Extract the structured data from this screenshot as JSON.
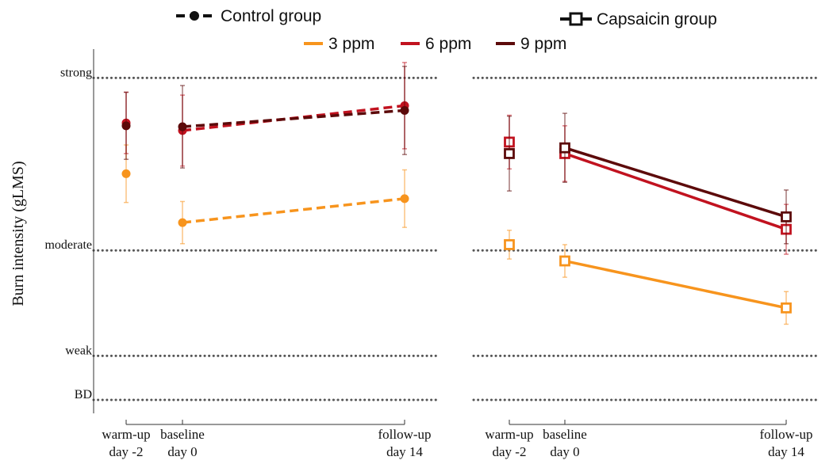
{
  "chart_data": {
    "type": "line",
    "ylabel": "Burn intensity (gLMS)",
    "reference_levels": [
      {
        "label": "strong",
        "value": 35
      },
      {
        "label": "moderate",
        "value": 17
      },
      {
        "label": "weak",
        "value": 6
      },
      {
        "label": "BD",
        "value": 1.4
      }
    ],
    "x_ticks": [
      {
        "line1": "warm-up",
        "line2": "day -2",
        "x": -2
      },
      {
        "line1": "baseline",
        "line2": "day 0",
        "x": 0
      },
      {
        "line1": "follow-up",
        "line2": "day 14",
        "x": 14
      }
    ],
    "xlim": [
      -3.1,
      15.5
    ],
    "ylim": [
      0,
      38
    ],
    "legend": {
      "groups": [
        {
          "name": "Control group",
          "marker": "circle",
          "line": "dashed"
        },
        {
          "name": "Capsaicin group",
          "marker": "square",
          "line": "solid"
        }
      ],
      "concentrations": [
        {
          "name": "3 ppm",
          "color": "#f7941d"
        },
        {
          "name": "6 ppm",
          "color": "#c1121f"
        },
        {
          "name": "9 ppm",
          "color": "#5c0a0a"
        }
      ]
    },
    "panels": [
      {
        "group": "Control group",
        "series": [
          {
            "name": "3 ppm",
            "color": "#f7941d",
            "points": [
              {
                "x": -2,
                "y": 25,
                "err": 3.0
              },
              {
                "x": 0,
                "y": 19.9,
                "err": 2.2
              },
              {
                "x": 14,
                "y": 22.4,
                "err": 3.0
              }
            ]
          },
          {
            "name": "6 ppm",
            "color": "#c1121f",
            "points": [
              {
                "x": -2,
                "y": 30.3,
                "err": 3.2
              },
              {
                "x": 0,
                "y": 29.5,
                "err": 3.7
              },
              {
                "x": 14,
                "y": 32.1,
                "err": 4.5
              }
            ]
          },
          {
            "name": "9 ppm",
            "color": "#5c0a0a",
            "points": [
              {
                "x": -2,
                "y": 30.0,
                "err": 3.5
              },
              {
                "x": 0,
                "y": 29.9,
                "err": 4.3
              },
              {
                "x": 14,
                "y": 31.6,
                "err": 4.6
              }
            ]
          }
        ]
      },
      {
        "group": "Capsaicin group",
        "series": [
          {
            "name": "3 ppm",
            "color": "#f7941d",
            "points": [
              {
                "x": -2,
                "y": 17.6,
                "err": 1.5
              },
              {
                "x": 0,
                "y": 15.9,
                "err": 1.7
              },
              {
                "x": 14,
                "y": 11.0,
                "err": 1.7
              }
            ]
          },
          {
            "name": "6 ppm",
            "color": "#c1121f",
            "points": [
              {
                "x": -2,
                "y": 28.3,
                "err": 2.8
              },
              {
                "x": 0,
                "y": 27.1,
                "err": 2.9
              },
              {
                "x": 14,
                "y": 19.2,
                "err": 2.6
              }
            ]
          },
          {
            "name": "9 ppm",
            "color": "#5c0a0a",
            "points": [
              {
                "x": -2,
                "y": 27.1,
                "err": 3.9
              },
              {
                "x": 0,
                "y": 27.7,
                "err": 3.6
              },
              {
                "x": 14,
                "y": 20.5,
                "err": 2.8
              }
            ]
          }
        ]
      }
    ]
  }
}
